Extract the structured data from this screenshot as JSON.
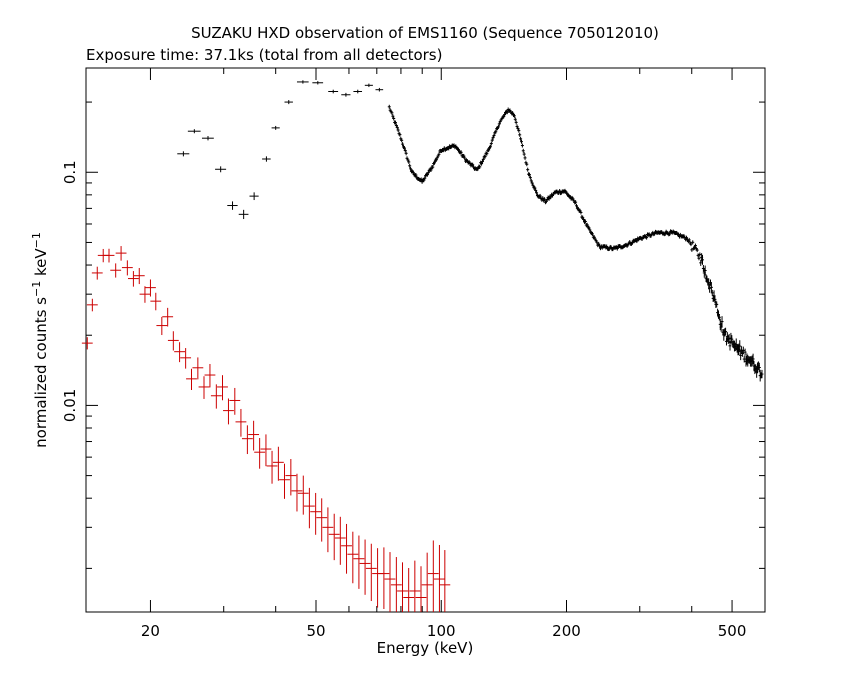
{
  "chart_data": {
    "type": "scatter",
    "title": "SUZAKU HXD observation of EMS1160 (Sequence 705012010)",
    "subtitle": "Exposure time: 37.1ks (total from all detectors)",
    "xlabel": "Energy (keV)",
    "ylabel_main": "normalized counts s",
    "ylabel_sup1": "−1",
    "ylabel_mid": " keV",
    "ylabel_sup2": "−1",
    "x_scale": "log",
    "y_scale": "log",
    "xlim": [
      14,
      600
    ],
    "ylim": [
      0.0013,
      0.28
    ],
    "x_ticks": [
      20,
      50,
      100,
      200,
      500
    ],
    "x_tick_labels": [
      "20",
      "50",
      "100",
      "200",
      "500"
    ],
    "y_ticks": [
      0.1,
      0.01
    ],
    "y_tick_labels": [
      "0.1",
      "0.01"
    ],
    "grid": false,
    "series": [
      {
        "color": "#000000",
        "anchors": [
          [
            24,
            0.12
          ],
          [
            25.5,
            0.15
          ],
          [
            27.5,
            0.14
          ],
          [
            29.5,
            0.103
          ],
          [
            31.5,
            0.072
          ],
          [
            33.5,
            0.066
          ],
          [
            35.5,
            0.079
          ],
          [
            38,
            0.114
          ],
          [
            40,
            0.155
          ],
          [
            43,
            0.2
          ],
          [
            45,
            0.232
          ],
          [
            48,
            0.245
          ],
          [
            51,
            0.24
          ],
          [
            55,
            0.222
          ],
          [
            59,
            0.215
          ],
          [
            63,
            0.222
          ],
          [
            67,
            0.236
          ],
          [
            71,
            0.226
          ],
          [
            75,
            0.19
          ],
          [
            80,
            0.14
          ],
          [
            85,
            0.1
          ],
          [
            90,
            0.091
          ],
          [
            95,
            0.105
          ],
          [
            100,
            0.125
          ],
          [
            108,
            0.13
          ],
          [
            115,
            0.112
          ],
          [
            122,
            0.102
          ],
          [
            130,
            0.125
          ],
          [
            138,
            0.163
          ],
          [
            145,
            0.186
          ],
          [
            150,
            0.175
          ],
          [
            155,
            0.14
          ],
          [
            162,
            0.1
          ],
          [
            170,
            0.08
          ],
          [
            178,
            0.075
          ],
          [
            188,
            0.082
          ],
          [
            198,
            0.083
          ],
          [
            210,
            0.074
          ],
          [
            225,
            0.058
          ],
          [
            240,
            0.048
          ],
          [
            260,
            0.047
          ],
          [
            280,
            0.049
          ],
          [
            300,
            0.052
          ],
          [
            330,
            0.055
          ],
          [
            360,
            0.055
          ],
          [
            390,
            0.052
          ],
          [
            420,
            0.043
          ],
          [
            450,
            0.03
          ],
          [
            480,
            0.02
          ],
          [
            510,
            0.0178
          ],
          [
            550,
            0.0158
          ],
          [
            590,
            0.0138
          ]
        ],
        "errors": [
          [
            24,
            0.12,
            0.8,
            0.003
          ],
          [
            25.5,
            0.15,
            0.9,
            0.003
          ],
          [
            27.5,
            0.14,
            0.9,
            0.003
          ],
          [
            29.5,
            0.103,
            0.9,
            0.003
          ],
          [
            31.5,
            0.072,
            0.9,
            0.003
          ],
          [
            33.5,
            0.066,
            0.9,
            0.003
          ],
          [
            35.5,
            0.079,
            0.9,
            0.003
          ],
          [
            38,
            0.114,
            0.9,
            0.003
          ],
          [
            40,
            0.155,
            0.9,
            0.003
          ],
          [
            43,
            0.2,
            1.0,
            0.004
          ],
          [
            46.5,
            0.244,
            1.5,
            0.004
          ],
          [
            50.5,
            0.242,
            1.5,
            0.004
          ],
          [
            55,
            0.222,
            1.5,
            0.004
          ],
          [
            59,
            0.215,
            1.5,
            0.004
          ],
          [
            63,
            0.222,
            1.5,
            0.004
          ],
          [
            67,
            0.236,
            1.5,
            0.004
          ],
          [
            71,
            0.226,
            1.5,
            0.004
          ]
        ]
      },
      {
        "color": "#cc0000",
        "points": [
          [
            14.1,
            0.0185
          ],
          [
            14.5,
            0.027
          ],
          [
            14.9,
            0.037
          ],
          [
            15.4,
            0.044
          ],
          [
            15.9,
            0.044
          ],
          [
            16.5,
            0.038
          ],
          [
            17.0,
            0.045
          ],
          [
            17.6,
            0.039
          ],
          [
            18.2,
            0.035
          ],
          [
            18.8,
            0.036
          ],
          [
            19.4,
            0.03
          ],
          [
            20.0,
            0.032
          ],
          [
            20.6,
            0.028
          ],
          [
            21.3,
            0.022
          ],
          [
            22.0,
            0.024
          ],
          [
            22.7,
            0.019
          ],
          [
            23.5,
            0.017
          ],
          [
            24.3,
            0.016
          ],
          [
            25.1,
            0.013
          ],
          [
            26.0,
            0.0145
          ],
          [
            26.9,
            0.012
          ],
          [
            27.8,
            0.0135
          ],
          [
            28.8,
            0.011
          ],
          [
            29.8,
            0.012
          ],
          [
            30.8,
            0.0095
          ],
          [
            31.9,
            0.0105
          ],
          [
            33.0,
            0.0085
          ],
          [
            34.2,
            0.0072
          ],
          [
            35.4,
            0.0075
          ],
          [
            36.6,
            0.0063
          ],
          [
            37.9,
            0.0065
          ],
          [
            39.2,
            0.0055
          ],
          [
            40.6,
            0.0057
          ],
          [
            42.0,
            0.0048
          ],
          [
            43.5,
            0.005
          ],
          [
            45.0,
            0.0043
          ],
          [
            46.6,
            0.0042
          ],
          [
            48.2,
            0.0037
          ],
          [
            49.9,
            0.0035
          ],
          [
            51.6,
            0.0033
          ],
          [
            53.4,
            0.003
          ],
          [
            55.3,
            0.0028
          ],
          [
            57.2,
            0.0027
          ],
          [
            59.2,
            0.0025
          ],
          [
            61.3,
            0.0023
          ],
          [
            63.4,
            0.0022
          ],
          [
            65.6,
            0.0021
          ],
          [
            67.9,
            0.002
          ],
          [
            70.3,
            0.0019
          ],
          [
            72.8,
            0.0019
          ],
          [
            75.3,
            0.0018
          ],
          [
            78.0,
            0.0017
          ],
          [
            80.7,
            0.0016
          ],
          [
            83.5,
            0.0015
          ],
          [
            86.4,
            0.0016
          ],
          [
            89.4,
            0.0015
          ],
          [
            92.5,
            0.0017
          ],
          [
            95.7,
            0.0019
          ],
          [
            99.0,
            0.0018
          ],
          [
            102,
            0.0017
          ]
        ]
      }
    ]
  }
}
